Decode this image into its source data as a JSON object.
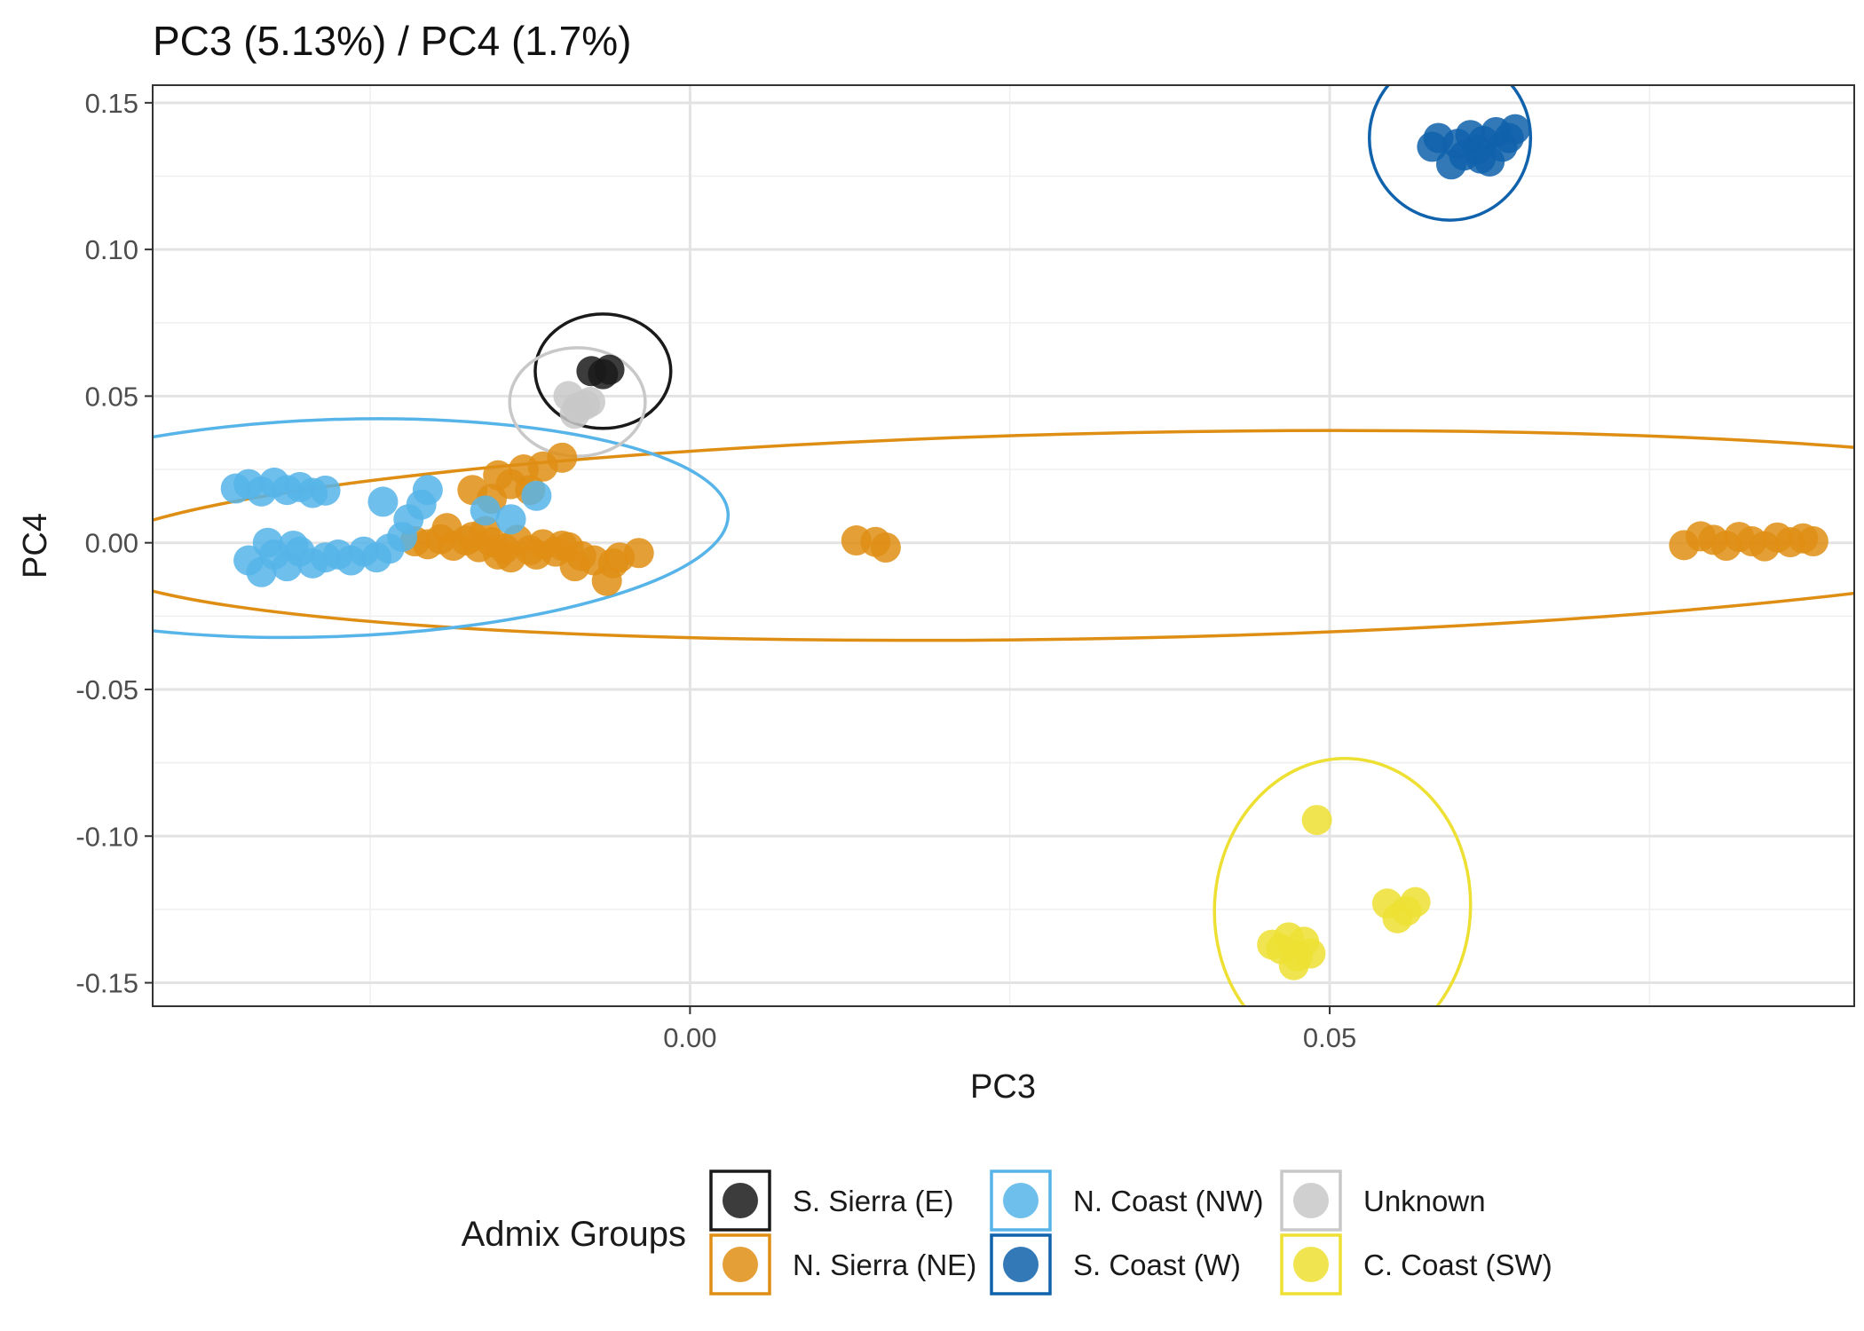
{
  "chart_data": {
    "type": "scatter",
    "title": "PC3 (5.13%) / PC4 (1.7%)",
    "xlabel": "PC3",
    "ylabel": "PC4",
    "xlim": [
      -0.042,
      0.091
    ],
    "ylim": [
      -0.158,
      0.156
    ],
    "x_ticks": [
      0.0,
      0.05
    ],
    "x_tick_labels": [
      "0.00",
      "0.05"
    ],
    "y_ticks": [
      0.15,
      0.1,
      0.05,
      0.0,
      -0.05,
      -0.1,
      -0.15
    ],
    "y_tick_labels": [
      "0.15",
      "0.10",
      "0.05",
      "0.00",
      "-0.05",
      "-0.10",
      "-0.15"
    ],
    "grid": true,
    "legend": {
      "title": "Admix Groups",
      "position": "bottom"
    },
    "series": [
      {
        "name": "S. Sierra (E)",
        "color": "#1a1a1a",
        "points": [
          [
            -0.0077,
            0.0585
          ],
          [
            -0.0063,
            0.059
          ],
          [
            -0.0068,
            0.0575
          ]
        ],
        "ellipse": {
          "cx": -0.0068,
          "cy": 0.0585,
          "rx": 0.0053,
          "ry": 0.0195,
          "angle": 0
        }
      },
      {
        "name": "N. Sierra (NE)",
        "color": "#df8e14",
        "points": [
          [
            -0.0215,
            0.0005
          ],
          [
            -0.0205,
            -0.0005
          ],
          [
            -0.0195,
            0.0012
          ],
          [
            -0.0185,
            -0.001
          ],
          [
            -0.0175,
            0.0008
          ],
          [
            -0.0165,
            -0.0015
          ],
          [
            -0.0155,
            0.0002
          ],
          [
            -0.0145,
            -0.002
          ],
          [
            -0.0135,
            0.001
          ],
          [
            -0.0125,
            -0.0025
          ],
          [
            -0.0115,
            -0.0005
          ],
          [
            -0.0105,
            -0.003
          ],
          [
            -0.0095,
            -0.0015
          ],
          [
            -0.0085,
            -0.0045
          ],
          [
            -0.0075,
            -0.006
          ],
          [
            -0.0065,
            -0.013
          ],
          [
            -0.006,
            -0.007
          ],
          [
            -0.0055,
            -0.005
          ],
          [
            -0.004,
            -0.0035
          ],
          [
            -0.019,
            0.005
          ],
          [
            -0.017,
            0.002
          ],
          [
            -0.016,
            0.004
          ],
          [
            -0.015,
            -0.004
          ],
          [
            -0.014,
            -0.005
          ],
          [
            -0.012,
            -0.004
          ],
          [
            -0.017,
            0.018
          ],
          [
            -0.015,
            0.023
          ],
          [
            -0.014,
            0.02
          ],
          [
            -0.013,
            0.025
          ],
          [
            -0.0125,
            0.018
          ],
          [
            -0.0115,
            0.026
          ],
          [
            -0.01,
            0.029
          ],
          [
            -0.0155,
            0.015
          ],
          [
            -0.01,
            -0.001
          ],
          [
            -0.009,
            -0.008
          ],
          [
            0.013,
            0.0008
          ],
          [
            0.0145,
            0.0003
          ],
          [
            0.0153,
            -0.0016
          ],
          [
            0.0777,
            -0.0008
          ],
          [
            0.079,
            0.0022
          ],
          [
            0.08,
            0.001
          ],
          [
            0.081,
            -0.001
          ],
          [
            0.082,
            0.002
          ],
          [
            0.083,
            0.0005
          ],
          [
            0.084,
            -0.0012
          ],
          [
            0.085,
            0.0018
          ],
          [
            0.086,
            0.0002
          ],
          [
            0.087,
            0.0015
          ],
          [
            0.0878,
            0.0005
          ]
        ],
        "ellipse": {
          "cx": 0.034,
          "cy": 0.0025,
          "rx": 0.081,
          "ry": 0.035,
          "angle": -1.2
        }
      },
      {
        "name": "N. Coast (NW)",
        "color": "#56b4e9",
        "points": [
          [
            -0.0355,
            0.0185
          ],
          [
            -0.0345,
            0.02
          ],
          [
            -0.0335,
            0.0175
          ],
          [
            -0.0325,
            0.0205
          ],
          [
            -0.0315,
            0.018
          ],
          [
            -0.0305,
            0.019
          ],
          [
            -0.0295,
            0.017
          ],
          [
            -0.0285,
            0.0178
          ],
          [
            -0.0345,
            -0.006
          ],
          [
            -0.0335,
            -0.01
          ],
          [
            -0.0325,
            -0.004
          ],
          [
            -0.0315,
            -0.008
          ],
          [
            -0.0305,
            -0.003
          ],
          [
            -0.0295,
            -0.007
          ],
          [
            -0.0285,
            -0.005
          ],
          [
            -0.0275,
            -0.004
          ],
          [
            -0.0265,
            -0.006
          ],
          [
            -0.0255,
            -0.003
          ],
          [
            -0.0245,
            -0.005
          ],
          [
            -0.024,
            0.014
          ],
          [
            -0.0225,
            0.002
          ],
          [
            -0.0235,
            -0.002
          ],
          [
            -0.022,
            0.008
          ],
          [
            -0.021,
            0.013
          ],
          [
            -0.0205,
            0.018
          ],
          [
            -0.031,
            -0.001
          ],
          [
            -0.033,
            0.0
          ],
          [
            -0.016,
            0.011
          ],
          [
            -0.014,
            0.008
          ],
          [
            -0.012,
            0.016
          ]
        ],
        "ellipse": {
          "cx": -0.028,
          "cy": 0.005,
          "rx": 0.031,
          "ry": 0.037,
          "angle": -2.0
        }
      },
      {
        "name": "S. Coast (W)",
        "color": "#0f62ab",
        "points": [
          [
            0.058,
            0.135
          ],
          [
            0.0585,
            0.138
          ],
          [
            0.0595,
            0.129
          ],
          [
            0.06,
            0.136
          ],
          [
            0.0605,
            0.132
          ],
          [
            0.061,
            0.139
          ],
          [
            0.0615,
            0.134
          ],
          [
            0.062,
            0.137
          ],
          [
            0.0625,
            0.13
          ],
          [
            0.063,
            0.14
          ],
          [
            0.0635,
            0.135
          ],
          [
            0.064,
            0.138
          ],
          [
            0.0645,
            0.141
          ],
          [
            0.0618,
            0.131
          ]
        ],
        "ellipse": {
          "cx": 0.0594,
          "cy": 0.138,
          "rx": 0.0063,
          "ry": 0.028,
          "angle": 0
        }
      },
      {
        "name": "Unknown",
        "color": "#c8c8c8",
        "points": [
          [
            -0.0095,
            0.05
          ],
          [
            -0.0088,
            0.046
          ],
          [
            -0.0082,
            0.047
          ],
          [
            -0.0078,
            0.048
          ],
          [
            -0.009,
            0.044
          ]
        ],
        "ellipse": {
          "cx": -0.0088,
          "cy": 0.048,
          "rx": 0.0053,
          "ry": 0.0185,
          "angle": 0
        }
      },
      {
        "name": "C. Coast (SW)",
        "color": "#ede032",
        "points": [
          [
            0.049,
            -0.0945
          ],
          [
            0.0455,
            -0.137
          ],
          [
            0.0462,
            -0.1385
          ],
          [
            0.0468,
            -0.1345
          ],
          [
            0.0475,
            -0.141
          ],
          [
            0.048,
            -0.136
          ],
          [
            0.0472,
            -0.144
          ],
          [
            0.0485,
            -0.14
          ],
          [
            0.0545,
            -0.123
          ],
          [
            0.0553,
            -0.128
          ],
          [
            0.056,
            -0.1255
          ],
          [
            0.0567,
            -0.1225
          ]
        ],
        "ellipse": {
          "cx": 0.051,
          "cy": -0.1245,
          "rx": 0.01,
          "ry": 0.051,
          "angle": 4
        }
      }
    ]
  }
}
